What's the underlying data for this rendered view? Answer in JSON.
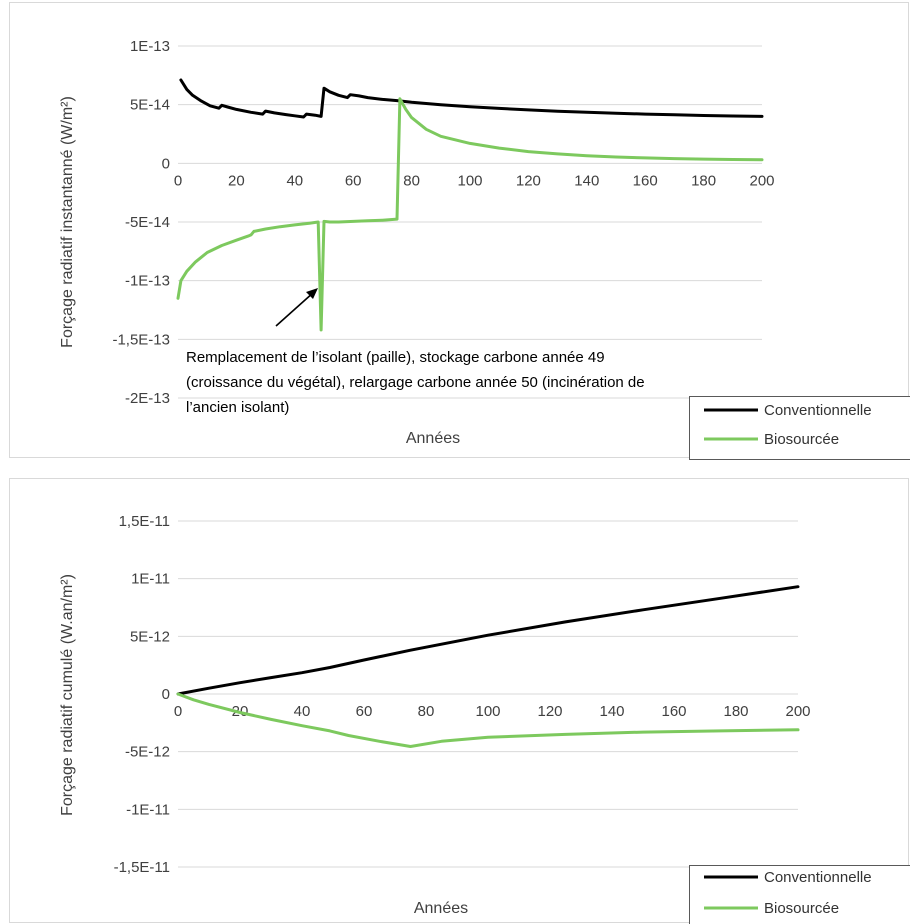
{
  "colors": {
    "conventionnelle": "#000000",
    "biosourcee": "#7dc95e",
    "grid": "#d9d9d9"
  },
  "chart_data": [
    {
      "type": "line",
      "title": "",
      "xlabel": "Années",
      "ylabel": "Forçage radiatif instantanné (W/m²)",
      "xlim": [
        0,
        200
      ],
      "ylim": [
        -2e-13,
        1e-13
      ],
      "grid": true,
      "legend": "bottom-right",
      "x_ticks": [
        0,
        20,
        40,
        60,
        80,
        100,
        120,
        140,
        160,
        180,
        200
      ],
      "x_tick_labels": [
        "0",
        "20",
        "40",
        "60",
        "80",
        "100",
        "120",
        "140",
        "160",
        "180",
        "200"
      ],
      "y_ticks": [
        1e-13,
        5e-14,
        0,
        -5e-14,
        -1e-13,
        -1.5e-13,
        -2e-13
      ],
      "y_tick_labels": [
        "1E-13",
        "5E-14",
        "0",
        "-5E-14",
        "-1E-13",
        "-1,5E-13",
        "-2E-13"
      ],
      "annotation": {
        "lines": [
          "Remplacement de l’isolant (paille), stockage carbone année 49",
          "(croissance du végétal), relargage carbone année 50 (incinération de",
          "l’ancien isolant)"
        ],
        "arrow_target": [
          49,
          -1.05e-13
        ]
      },
      "series": [
        {
          "name": "Conventionnelle",
          "color": "#000000",
          "points": [
            [
              1,
              7.1e-14
            ],
            [
              3,
              6.3e-14
            ],
            [
              5,
              5.8e-14
            ],
            [
              8,
              5.3e-14
            ],
            [
              11,
              4.9e-14
            ],
            [
              14,
              4.7e-14
            ],
            [
              15,
              4.95e-14
            ],
            [
              17,
              4.8e-14
            ],
            [
              20,
              4.6e-14
            ],
            [
              25,
              4.35e-14
            ],
            [
              29,
              4.2e-14
            ],
            [
              30,
              4.45e-14
            ],
            [
              33,
              4.3e-14
            ],
            [
              37,
              4.15e-14
            ],
            [
              40,
              4.05e-14
            ],
            [
              43,
              3.95e-14
            ],
            [
              44,
              4.2e-14
            ],
            [
              47,
              4.1e-14
            ],
            [
              49,
              4e-14
            ],
            [
              50,
              6.4e-14
            ],
            [
              52,
              6.1e-14
            ],
            [
              55,
              5.8e-14
            ],
            [
              58,
              5.6e-14
            ],
            [
              59,
              5.85e-14
            ],
            [
              62,
              5.75e-14
            ],
            [
              65,
              5.6e-14
            ],
            [
              70,
              5.45e-14
            ],
            [
              75,
              5.35e-14
            ],
            [
              80,
              5.2e-14
            ],
            [
              90,
              5e-14
            ],
            [
              100,
              4.82e-14
            ],
            [
              110,
              4.68e-14
            ],
            [
              120,
              4.55e-14
            ],
            [
              130,
              4.44e-14
            ],
            [
              140,
              4.35e-14
            ],
            [
              150,
              4.27e-14
            ],
            [
              160,
              4.2e-14
            ],
            [
              170,
              4.14e-14
            ],
            [
              180,
              4.08e-14
            ],
            [
              190,
              4.03e-14
            ],
            [
              200,
              4e-14
            ]
          ]
        },
        {
          "name": "Biosourcée",
          "color": "#7dc95e",
          "points": [
            [
              0,
              -1.15e-13
            ],
            [
              1,
              -1e-13
            ],
            [
              3,
              -9.2e-14
            ],
            [
              6,
              -8.4e-14
            ],
            [
              10,
              -7.6e-14
            ],
            [
              15,
              -7e-14
            ],
            [
              20,
              -6.55e-14
            ],
            [
              24,
              -6.2e-14
            ],
            [
              25,
              -6.1e-14
            ],
            [
              26,
              -5.8e-14
            ],
            [
              30,
              -5.6e-14
            ],
            [
              35,
              -5.4e-14
            ],
            [
              40,
              -5.25e-14
            ],
            [
              45,
              -5.1e-14
            ],
            [
              48,
              -5e-14
            ],
            [
              49,
              -1.42e-13
            ],
            [
              50,
              -4.95e-14
            ],
            [
              52,
              -5e-14
            ],
            [
              55,
              -5e-14
            ],
            [
              60,
              -4.95e-14
            ],
            [
              65,
              -4.9e-14
            ],
            [
              70,
              -4.85e-14
            ],
            [
              75,
              -4.75e-14
            ],
            [
              76,
              5.5e-14
            ],
            [
              78,
              4.6e-14
            ],
            [
              80,
              3.9e-14
            ],
            [
              85,
              2.9e-14
            ],
            [
              90,
              2.3e-14
            ],
            [
              100,
              1.7e-14
            ],
            [
              110,
              1.3e-14
            ],
            [
              120,
              1e-14
            ],
            [
              130,
              8e-15
            ],
            [
              140,
              6.5e-15
            ],
            [
              150,
              5.4e-15
            ],
            [
              160,
              4.6e-15
            ],
            [
              170,
              4e-15
            ],
            [
              180,
              3.6e-15
            ],
            [
              190,
              3.3e-15
            ],
            [
              200,
              3.1e-15
            ]
          ]
        }
      ]
    },
    {
      "type": "line",
      "title": "",
      "xlabel": "Années",
      "ylabel": "Forçage radiatif cumulé (W.an/m²)",
      "xlim": [
        0,
        200
      ],
      "ylim": [
        -1.5e-11,
        1.5e-11
      ],
      "grid": true,
      "legend": "bottom-right",
      "x_ticks": [
        0,
        20,
        40,
        60,
        80,
        100,
        120,
        140,
        160,
        180,
        200
      ],
      "x_tick_labels": [
        "0",
        "20",
        "40",
        "60",
        "80",
        "100",
        "120",
        "140",
        "160",
        "180",
        "200"
      ],
      "y_ticks": [
        1.5e-11,
        1e-11,
        5e-12,
        0,
        -5e-12,
        -1e-11,
        -1.5e-11
      ],
      "y_tick_labels": [
        "1,5E-11",
        "1E-11",
        "5E-12",
        "0",
        "-5E-12",
        "-1E-11",
        "-1,5E-11"
      ],
      "series": [
        {
          "name": "Conventionnelle",
          "color": "#000000",
          "points": [
            [
              0,
              0
            ],
            [
              10,
              5e-13
            ],
            [
              20,
              9.8e-13
            ],
            [
              30,
              1.42e-12
            ],
            [
              40,
              1.85e-12
            ],
            [
              49,
              2.3e-12
            ],
            [
              60,
              2.95e-12
            ],
            [
              75,
              3.8e-12
            ],
            [
              100,
              5.1e-12
            ],
            [
              125,
              6.25e-12
            ],
            [
              150,
              7.3e-12
            ],
            [
              175,
              8.3e-12
            ],
            [
              200,
              9.3e-12
            ]
          ]
        },
        {
          "name": "Biosourcée",
          "color": "#7dc95e",
          "points": [
            [
              0,
              0
            ],
            [
              5,
              -5e-13
            ],
            [
              10,
              -9e-13
            ],
            [
              20,
              -1.6e-12
            ],
            [
              30,
              -2.2e-12
            ],
            [
              40,
              -2.75e-12
            ],
            [
              49,
              -3.2e-12
            ],
            [
              55,
              -3.6e-12
            ],
            [
              65,
              -4.1e-12
            ],
            [
              75,
              -4.55e-12
            ],
            [
              85,
              -4.1e-12
            ],
            [
              100,
              -3.75e-12
            ],
            [
              125,
              -3.5e-12
            ],
            [
              150,
              -3.3e-12
            ],
            [
              175,
              -3.2e-12
            ],
            [
              200,
              -3.1e-12
            ]
          ]
        }
      ]
    }
  ]
}
